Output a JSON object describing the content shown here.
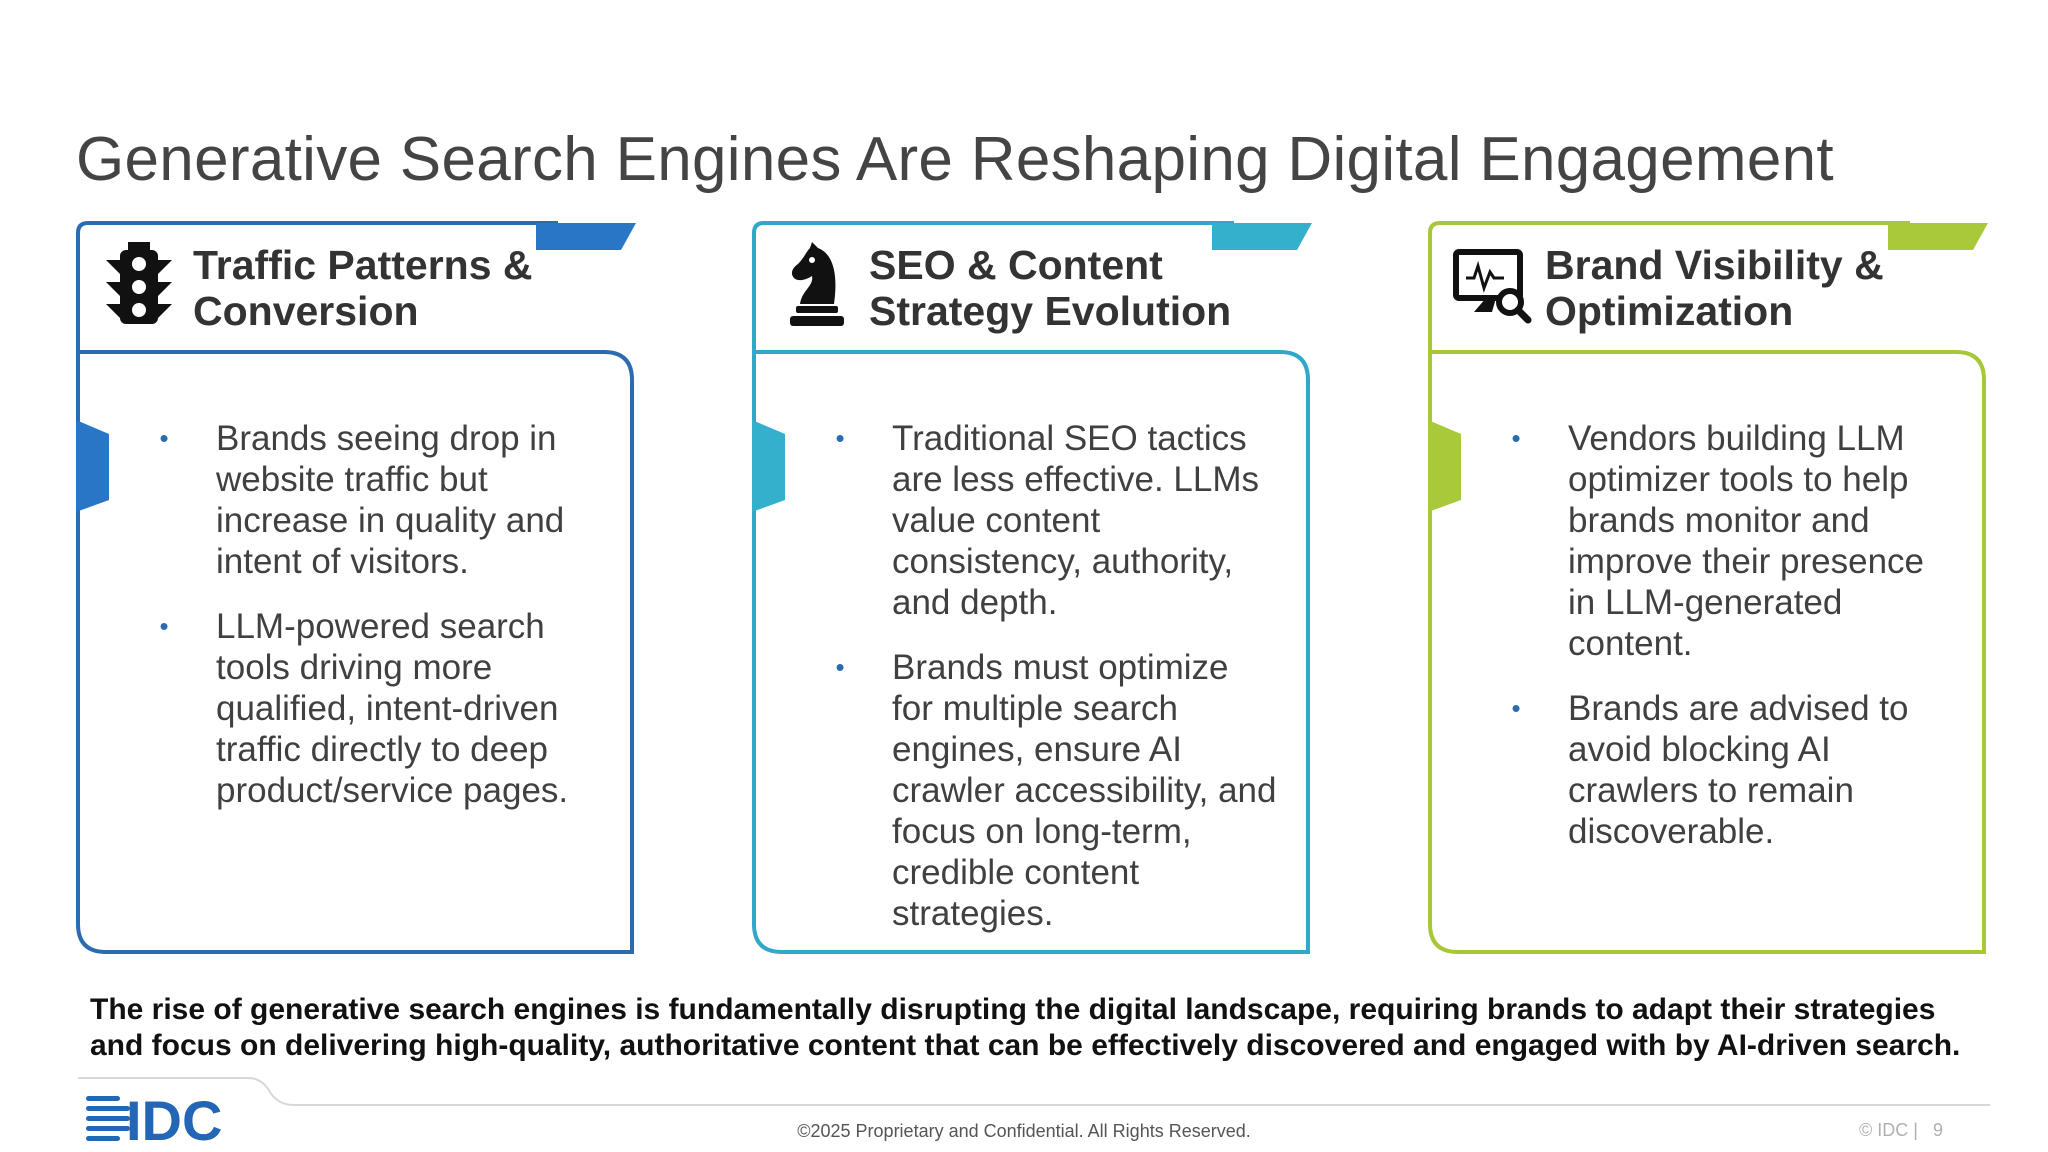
{
  "slide": {
    "title": "Generative Search Engines Are Reshaping Digital Engagement"
  },
  "cards": [
    {
      "title_line1": "Traffic Patterns &",
      "title_line2": "Conversion",
      "icon": "traffic-light-icon",
      "color": "#2b6cb0",
      "accent": "#2a76c6",
      "bullets": [
        "Brands seeing drop in website traffic but increase in quality and intent of visitors.",
        "LLM-powered search tools driving more qualified, intent-driven traffic directly to deep product/service pages."
      ]
    },
    {
      "title_line1": "SEO & Content",
      "title_line2": "Strategy Evolution",
      "icon": "chess-knight-icon",
      "color": "#30a8c8",
      "accent": "#34b0cc",
      "bullets": [
        "Traditional SEO tactics are less effective. LLMs value content consistency, authority, and depth.",
        "Brands must optimize for multiple search engines, ensure AI crawler accessibility, and focus on long-term, credible content strategies."
      ]
    },
    {
      "title_line1": "Brand Visibility &",
      "title_line2": "Optimization",
      "icon": "monitor-search-icon",
      "color": "#a6c738",
      "accent": "#a8c93a",
      "bullets": [
        "Vendors building LLM optimizer tools to help brands monitor and improve their presence in LLM-generated content.",
        "Brands are advised to avoid blocking AI crawlers to remain discoverable."
      ]
    }
  ],
  "summary": "The rise of generative search engines is fundamentally disrupting the digital landscape, requiring brands to adapt their strategies and focus on delivering high-quality, authoritative content that can be effectively discovered and engaged with by AI-driven search.",
  "footer": {
    "logo_text": "IDC",
    "copyright": "©2025 Proprietary and Confidential. All Rights Reserved.",
    "page_label": "© IDC |",
    "page_number": "9"
  }
}
